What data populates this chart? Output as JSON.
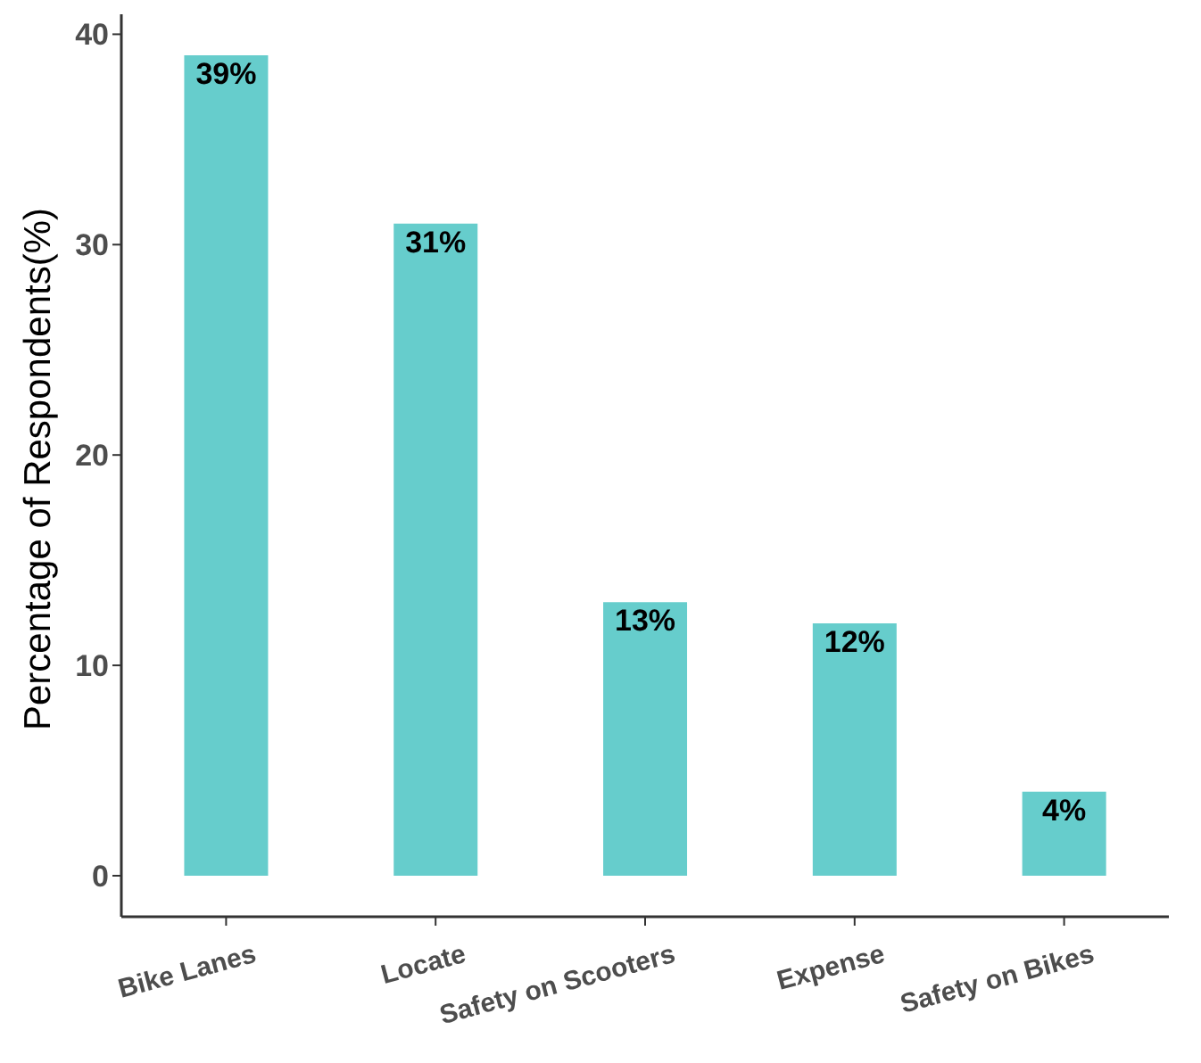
{
  "chart_data": {
    "type": "bar",
    "ylabel": "Percentage of Respondents(%)",
    "categories": [
      "Bike Lanes",
      "Locate",
      "Safety on Scooters",
      "Expense",
      "Safety on Bikes"
    ],
    "values": [
      39,
      31,
      13,
      12,
      4
    ],
    "value_labels": [
      "39%",
      "31%",
      "13%",
      "12%",
      "4%"
    ],
    "color": "#66cdcc",
    "ylim": [
      -1.95,
      40.95
    ],
    "yticks": [
      0,
      10,
      20,
      30,
      40
    ],
    "grid": false,
    "legend": false
  }
}
